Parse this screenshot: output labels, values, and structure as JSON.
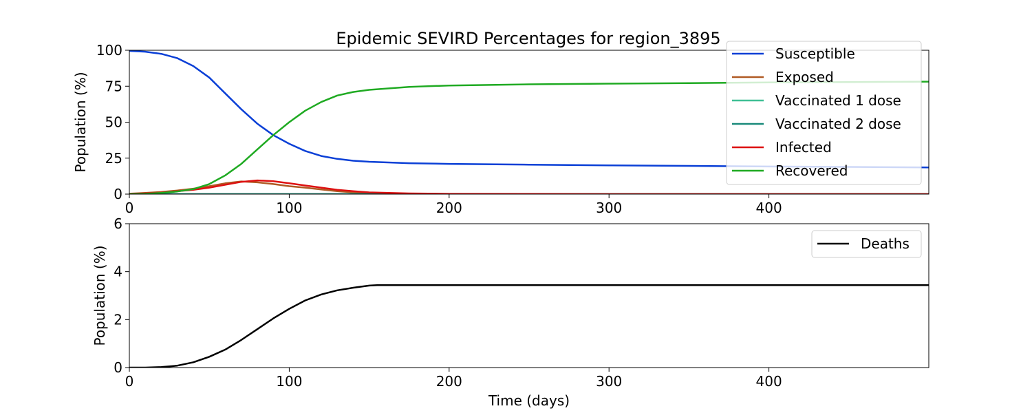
{
  "figure_title": "Epidemic SEVIRD Percentages for region_3895",
  "colors": {
    "susceptible": "#0a3fd6",
    "exposed": "#b05a24",
    "vaccinated_1": "#3fbf95",
    "vaccinated_2": "#1a8a7a",
    "infected": "#dd1111",
    "recovered": "#1faa22",
    "deaths": "#000000"
  },
  "chart_data": [
    {
      "type": "line",
      "title": "Epidemic SEVIRD Percentages for region_3895",
      "xlabel": "",
      "ylabel": "Population (%)",
      "xlim": [
        0,
        500
      ],
      "ylim": [
        0,
        100
      ],
      "xticks": [
        0,
        100,
        200,
        300,
        400
      ],
      "yticks": [
        0,
        25,
        50,
        75,
        100
      ],
      "grid": false,
      "legend_position": "top-right",
      "series": [
        {
          "name": "Susceptible",
          "color_key": "susceptible",
          "x": [
            0,
            10,
            20,
            30,
            40,
            50,
            60,
            70,
            80,
            90,
            100,
            110,
            120,
            130,
            140,
            150,
            175,
            200,
            250,
            300,
            350,
            400,
            450,
            500
          ],
          "y": [
            99.5,
            99,
            97.5,
            94.5,
            89,
            81,
            70,
            59,
            49,
            41,
            35,
            30,
            26.5,
            24.5,
            23.2,
            22.5,
            21.5,
            21,
            20.5,
            20,
            19.6,
            19.2,
            18.9,
            18.5
          ]
        },
        {
          "name": "Exposed",
          "color_key": "exposed",
          "x": [
            0,
            10,
            20,
            30,
            40,
            50,
            60,
            70,
            80,
            90,
            100,
            110,
            120,
            130,
            140,
            150,
            175,
            200,
            250,
            300,
            400,
            500
          ],
          "y": [
            0.3,
            0.8,
            1.5,
            2.5,
            3.8,
            5.5,
            7.5,
            8.8,
            8.2,
            7,
            5.5,
            4.5,
            3.2,
            2,
            1.2,
            0.6,
            0.2,
            0.1,
            0,
            0,
            0,
            0
          ]
        },
        {
          "name": "Vaccinated 1 dose",
          "color_key": "vaccinated_1",
          "x": [
            0,
            100,
            200,
            300,
            400,
            500
          ],
          "y": [
            0,
            0,
            0,
            0,
            0,
            0
          ]
        },
        {
          "name": "Vaccinated 2 dose",
          "color_key": "vaccinated_2",
          "x": [
            0,
            100,
            200,
            300,
            400,
            500
          ],
          "y": [
            0,
            0,
            0,
            0,
            0,
            0
          ]
        },
        {
          "name": "Infected",
          "color_key": "infected",
          "x": [
            0,
            10,
            20,
            30,
            40,
            50,
            60,
            70,
            80,
            90,
            100,
            110,
            120,
            130,
            140,
            150,
            175,
            200,
            250,
            300,
            400,
            500
          ],
          "y": [
            0.2,
            0.5,
            1,
            2,
            3,
            4.5,
            6.5,
            8.5,
            9.5,
            9,
            7.5,
            6,
            4.5,
            3,
            2,
            1.2,
            0.5,
            0.2,
            0.1,
            0,
            0,
            0
          ]
        },
        {
          "name": "Recovered",
          "color_key": "recovered",
          "x": [
            0,
            10,
            20,
            30,
            40,
            50,
            60,
            70,
            80,
            90,
            100,
            110,
            120,
            130,
            140,
            150,
            175,
            200,
            250,
            300,
            350,
            400,
            450,
            500
          ],
          "y": [
            0,
            0.2,
            0.8,
            1.8,
            3.5,
            7,
            13,
            21,
            31,
            41,
            50,
            58,
            64,
            68.5,
            71,
            72.5,
            74.5,
            75.5,
            76.3,
            76.8,
            77.2,
            77.6,
            77.9,
            78.2
          ]
        }
      ]
    },
    {
      "type": "line",
      "title": "",
      "xlabel": "Time (days)",
      "ylabel": "Population (%)",
      "xlim": [
        0,
        500
      ],
      "ylim": [
        0,
        6
      ],
      "xticks": [
        0,
        100,
        200,
        300,
        400
      ],
      "yticks": [
        0,
        2,
        4,
        6
      ],
      "grid": false,
      "legend_position": "top-right",
      "series": [
        {
          "name": "Deaths",
          "color_key": "deaths",
          "x": [
            0,
            10,
            20,
            30,
            40,
            50,
            60,
            70,
            80,
            90,
            100,
            110,
            120,
            130,
            140,
            150,
            155,
            200,
            300,
            400,
            500
          ],
          "y": [
            0,
            0,
            0.02,
            0.08,
            0.22,
            0.45,
            0.75,
            1.15,
            1.6,
            2.05,
            2.45,
            2.8,
            3.05,
            3.22,
            3.33,
            3.42,
            3.44,
            3.44,
            3.44,
            3.44,
            3.44
          ]
        }
      ]
    }
  ]
}
